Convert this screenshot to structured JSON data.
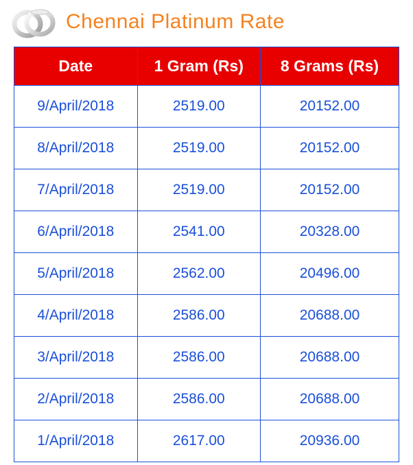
{
  "title": "Chennai Platinum Rate",
  "title_color": "#f58220",
  "table": {
    "header_bg": "#e80000",
    "header_fg": "#ffffff",
    "border_color": "#1a4fd8",
    "cell_fg": "#1a4fd8",
    "columns": [
      "Date",
      "1 Gram (Rs)",
      "8 Grams (Rs)"
    ],
    "rows": [
      [
        "9/April/2018",
        "2519.00",
        "20152.00"
      ],
      [
        "8/April/2018",
        "2519.00",
        "20152.00"
      ],
      [
        "7/April/2018",
        "2519.00",
        "20152.00"
      ],
      [
        "6/April/2018",
        "2541.00",
        "20328.00"
      ],
      [
        "5/April/2018",
        "2562.00",
        "20496.00"
      ],
      [
        "4/April/2018",
        "2586.00",
        "20688.00"
      ],
      [
        "3/April/2018",
        "2586.00",
        "20688.00"
      ],
      [
        "2/April/2018",
        "2586.00",
        "20688.00"
      ],
      [
        "1/April/2018",
        "2617.00",
        "20936.00"
      ]
    ]
  }
}
